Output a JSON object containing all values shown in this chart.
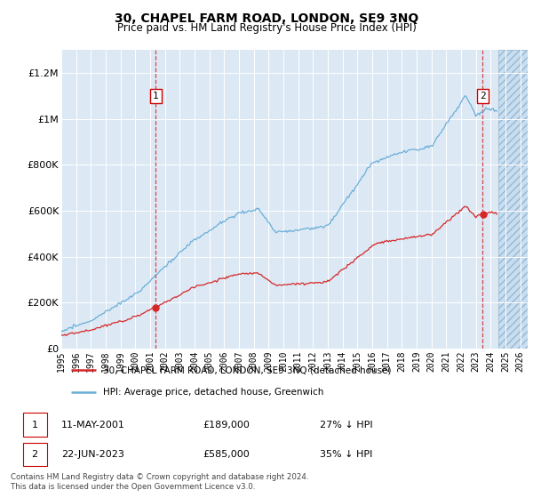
{
  "title": "30, CHAPEL FARM ROAD, LONDON, SE9 3NQ",
  "subtitle": "Price paid vs. HM Land Registry's House Price Index (HPI)",
  "legend_line1": "30, CHAPEL FARM ROAD, LONDON, SE9 3NQ (detached house)",
  "legend_line2": "HPI: Average price, detached house, Greenwich",
  "footer1": "Contains HM Land Registry data © Crown copyright and database right 2024.",
  "footer2": "This data is licensed under the Open Government Licence v3.0.",
  "annotation1_date": "11-MAY-2001",
  "annotation1_price": "£189,000",
  "annotation1_hpi": "27% ↓ HPI",
  "annotation2_date": "22-JUN-2023",
  "annotation2_price": "£585,000",
  "annotation2_hpi": "35% ↓ HPI",
  "sale1_year": 2001.37,
  "sale1_price": 189000,
  "sale2_year": 2023.47,
  "sale2_price": 585000,
  "hpi_color": "#6baed6",
  "property_color": "#d62728",
  "dashed_color": "#d62728",
  "bg_plot": "#dce9f5",
  "ylim": [
    0,
    1300000
  ],
  "xlim_start": 1995,
  "xlim_end": 2026.5,
  "future_start": 2024.5,
  "yticks": [
    0,
    200000,
    400000,
    600000,
    800000,
    1000000,
    1200000
  ],
  "ytick_labels": [
    "£0",
    "£200K",
    "£400K",
    "£600K",
    "£800K",
    "£1M",
    "£1.2M"
  ],
  "xticks": [
    1995,
    1996,
    1997,
    1998,
    1999,
    2000,
    2001,
    2002,
    2003,
    2004,
    2005,
    2006,
    2007,
    2008,
    2009,
    2010,
    2011,
    2012,
    2013,
    2014,
    2015,
    2016,
    2017,
    2018,
    2019,
    2020,
    2021,
    2022,
    2023,
    2024,
    2025,
    2026
  ]
}
